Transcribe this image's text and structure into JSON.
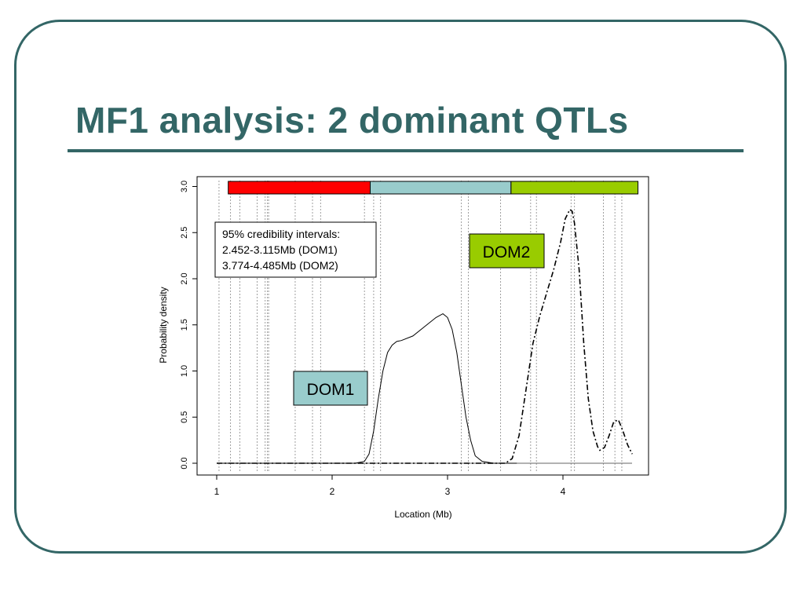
{
  "slide": {
    "title": "MF1 analysis: 2 dominant QTLs",
    "frame_color": "#336666"
  },
  "chart_data": {
    "type": "line",
    "title": "",
    "xlabel": "Location (Mb)",
    "ylabel": "Probability density",
    "xlim": [
      1,
      4.6
    ],
    "ylim": [
      0,
      3.0
    ],
    "xticks": [
      1,
      2,
      3,
      4
    ],
    "yticks": [
      0.0,
      0.5,
      1.0,
      1.5,
      2.0,
      2.5,
      3.0
    ],
    "ytick_labels": [
      "0.0",
      "0.5",
      "1.0",
      "1.5",
      "2.0",
      "2.5",
      "3.0"
    ],
    "grid": false,
    "marker_lines_x": [
      1.02,
      1.12,
      1.2,
      1.35,
      1.42,
      1.44,
      1.45,
      1.68,
      1.83,
      1.9,
      2.28,
      2.36,
      2.42,
      3.12,
      3.18,
      3.46,
      3.72,
      3.77,
      4.07,
      4.1,
      4.35,
      4.45,
      4.51
    ],
    "series": [
      {
        "line_style": "solid",
        "x": [
          1.0,
          2.2,
          2.28,
          2.32,
          2.36,
          2.4,
          2.44,
          2.48,
          2.52,
          2.56,
          2.6,
          2.7,
          2.8,
          2.9,
          2.96,
          3.0,
          3.04,
          3.08,
          3.12,
          3.16,
          3.2,
          3.24,
          3.3,
          3.4,
          3.6
        ],
        "y": [
          0.0,
          0.0,
          0.02,
          0.1,
          0.35,
          0.7,
          1.0,
          1.2,
          1.28,
          1.32,
          1.33,
          1.38,
          1.48,
          1.58,
          1.62,
          1.58,
          1.45,
          1.2,
          0.85,
          0.5,
          0.25,
          0.08,
          0.02,
          0.0,
          0.0
        ]
      },
      {
        "line_style": "dash-dot",
        "x": [
          1.0,
          3.5,
          3.56,
          3.62,
          3.68,
          3.74,
          3.8,
          3.86,
          3.92,
          3.98,
          4.02,
          4.06,
          4.08,
          4.1,
          4.14,
          4.18,
          4.22,
          4.26,
          4.3,
          4.32,
          4.36,
          4.4,
          4.44,
          4.48,
          4.52,
          4.56,
          4.6
        ],
        "y": [
          0.0,
          0.0,
          0.05,
          0.3,
          0.8,
          1.3,
          1.6,
          1.85,
          2.1,
          2.4,
          2.65,
          2.75,
          2.73,
          2.6,
          2.1,
          1.3,
          0.7,
          0.35,
          0.18,
          0.14,
          0.17,
          0.3,
          0.45,
          0.47,
          0.35,
          0.2,
          0.1
        ]
      }
    ],
    "segments": [
      {
        "x0": 1.1,
        "x1": 2.33,
        "color": "#ff0000"
      },
      {
        "x0": 2.33,
        "x1": 3.55,
        "color": "#99cccc"
      },
      {
        "x0": 3.55,
        "x1": 4.65,
        "color": "#99cc00"
      }
    ],
    "annotations": {
      "credibility_box": {
        "lines": [
          "95% credibility intervals:",
          "2.452-3.115Mb (DOM1)",
          "3.774-4.485Mb (DOM2)"
        ]
      },
      "dom1": {
        "label": "DOM1",
        "color": "#99cccc"
      },
      "dom2": {
        "label": "DOM2",
        "color": "#99cc00"
      }
    }
  }
}
